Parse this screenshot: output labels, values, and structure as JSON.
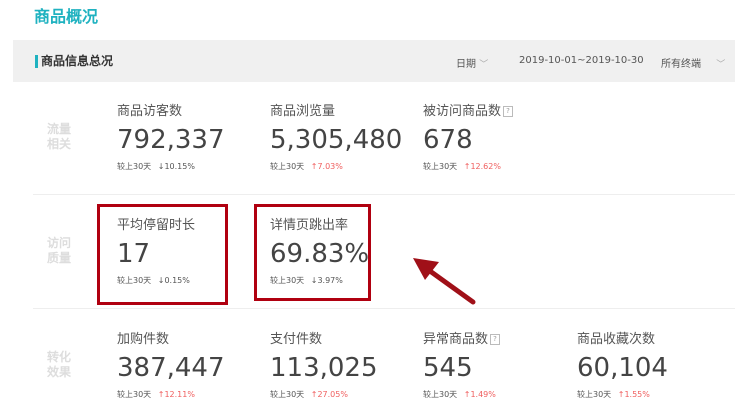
{
  "title": "商品概况",
  "section": {
    "title": "商品信息总况",
    "date_label": "日期",
    "date_range": "2019-10-01~2019-10-30",
    "terminal": "所有终端"
  },
  "compare_label": "较上30天",
  "colors": {
    "accent": "#1fb2c0",
    "up": "#f06060",
    "down": "#5cb85c",
    "highlight": "#b00010"
  },
  "rows": [
    {
      "label": "流量相关",
      "metrics": [
        {
          "name": "商品访客数",
          "value": "792,337",
          "dir": "down",
          "change": "10.15%"
        },
        {
          "name": "商品浏览量",
          "value": "5,305,480",
          "dir": "up",
          "change": "7.03%"
        },
        {
          "name": "被访问商品数",
          "value": "678",
          "dir": "up",
          "change": "12.62%",
          "help": "?"
        }
      ]
    },
    {
      "label": "访问质量",
      "metrics": [
        {
          "name": "平均停留时长",
          "value": "17",
          "dir": "down",
          "change": "0.15%"
        },
        {
          "name": "详情页跳出率",
          "value": "69.83%",
          "dir": "down",
          "change": "3.97%"
        }
      ]
    },
    {
      "label": "转化效果",
      "metrics": [
        {
          "name": "加购件数",
          "value": "387,447",
          "dir": "up",
          "change": "12.11%"
        },
        {
          "name": "支付件数",
          "value": "113,025",
          "dir": "up",
          "change": "27.05%"
        },
        {
          "name": "异常商品数",
          "value": "545",
          "dir": "up",
          "change": "1.49%",
          "help": "?"
        },
        {
          "name": "商品收藏次数",
          "value": "60,104",
          "dir": "up",
          "change": "1.55%"
        }
      ]
    }
  ]
}
